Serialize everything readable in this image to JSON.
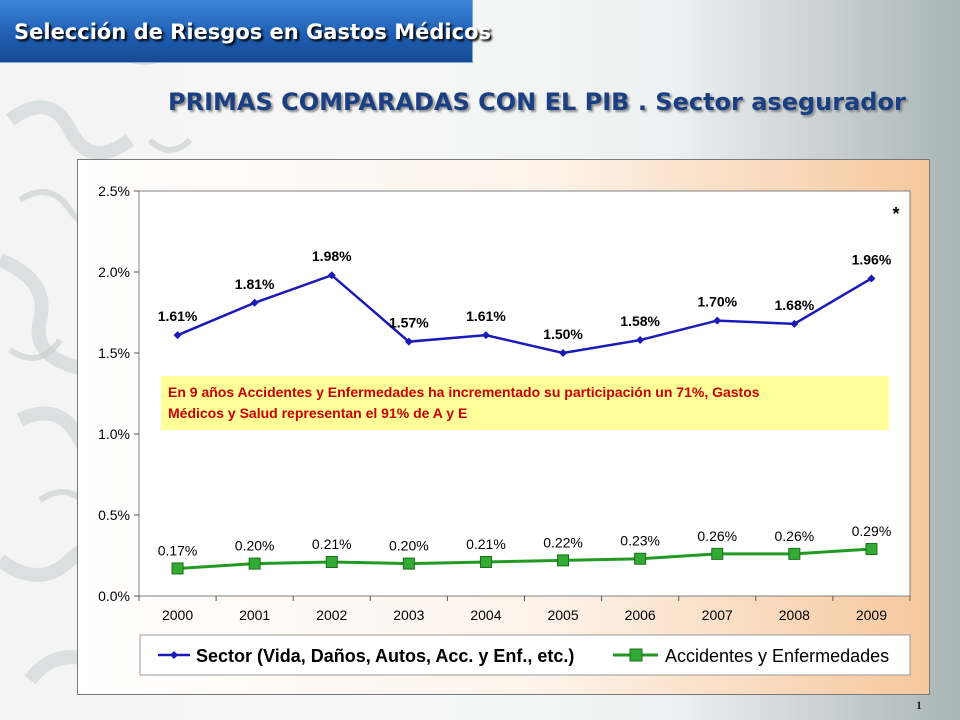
{
  "header": {
    "title": "Selección de Riesgos en Gastos Médicos"
  },
  "slide": {
    "title": "PRIMAS COMPARADAS CON EL PIB . Sector asegurador",
    "page_number": "1"
  },
  "chart_data": {
    "type": "line",
    "categories": [
      "2000",
      "2001",
      "2002",
      "2003",
      "2004",
      "2005",
      "2006",
      "2007",
      "2008",
      "2009"
    ],
    "y_ticks": [
      "0.0%",
      "0.5%",
      "1.0%",
      "1.5%",
      "2.0%",
      "2.5%"
    ],
    "ylim": [
      0,
      2.5
    ],
    "grid": false,
    "legend_position": "bottom",
    "series": [
      {
        "name": "Sector (Vida, Daños, Autos, Acc. y Enf., etc.)",
        "values": [
          1.61,
          1.81,
          1.98,
          1.57,
          1.61,
          1.5,
          1.58,
          1.7,
          1.68,
          1.96
        ],
        "labels": [
          "1.61%",
          "1.81%",
          "1.98%",
          "1.57%",
          "1.61%",
          "1.50%",
          "1.58%",
          "1.70%",
          "1.68%",
          "1.96%"
        ],
        "color": "#1a1ab8",
        "marker": "diamond"
      },
      {
        "name": "Accidentes y Enfermedades",
        "values": [
          0.17,
          0.2,
          0.21,
          0.2,
          0.21,
          0.22,
          0.23,
          0.26,
          0.26,
          0.29
        ],
        "labels": [
          "0.17%",
          "0.20%",
          "0.21%",
          "0.20%",
          "0.21%",
          "0.22%",
          "0.23%",
          "0.26%",
          "0.26%",
          "0.29%"
        ],
        "color": "#229922",
        "marker": "square"
      }
    ],
    "annotation": "En 9 años Accidentes y Enfermedades ha incrementado su participación un 71%, Gastos Médicos y Salud representan el 91% de A y E",
    "annotation_color": "#cc0000",
    "annotation_bg": "#ffff99",
    "asterisk": "*"
  }
}
